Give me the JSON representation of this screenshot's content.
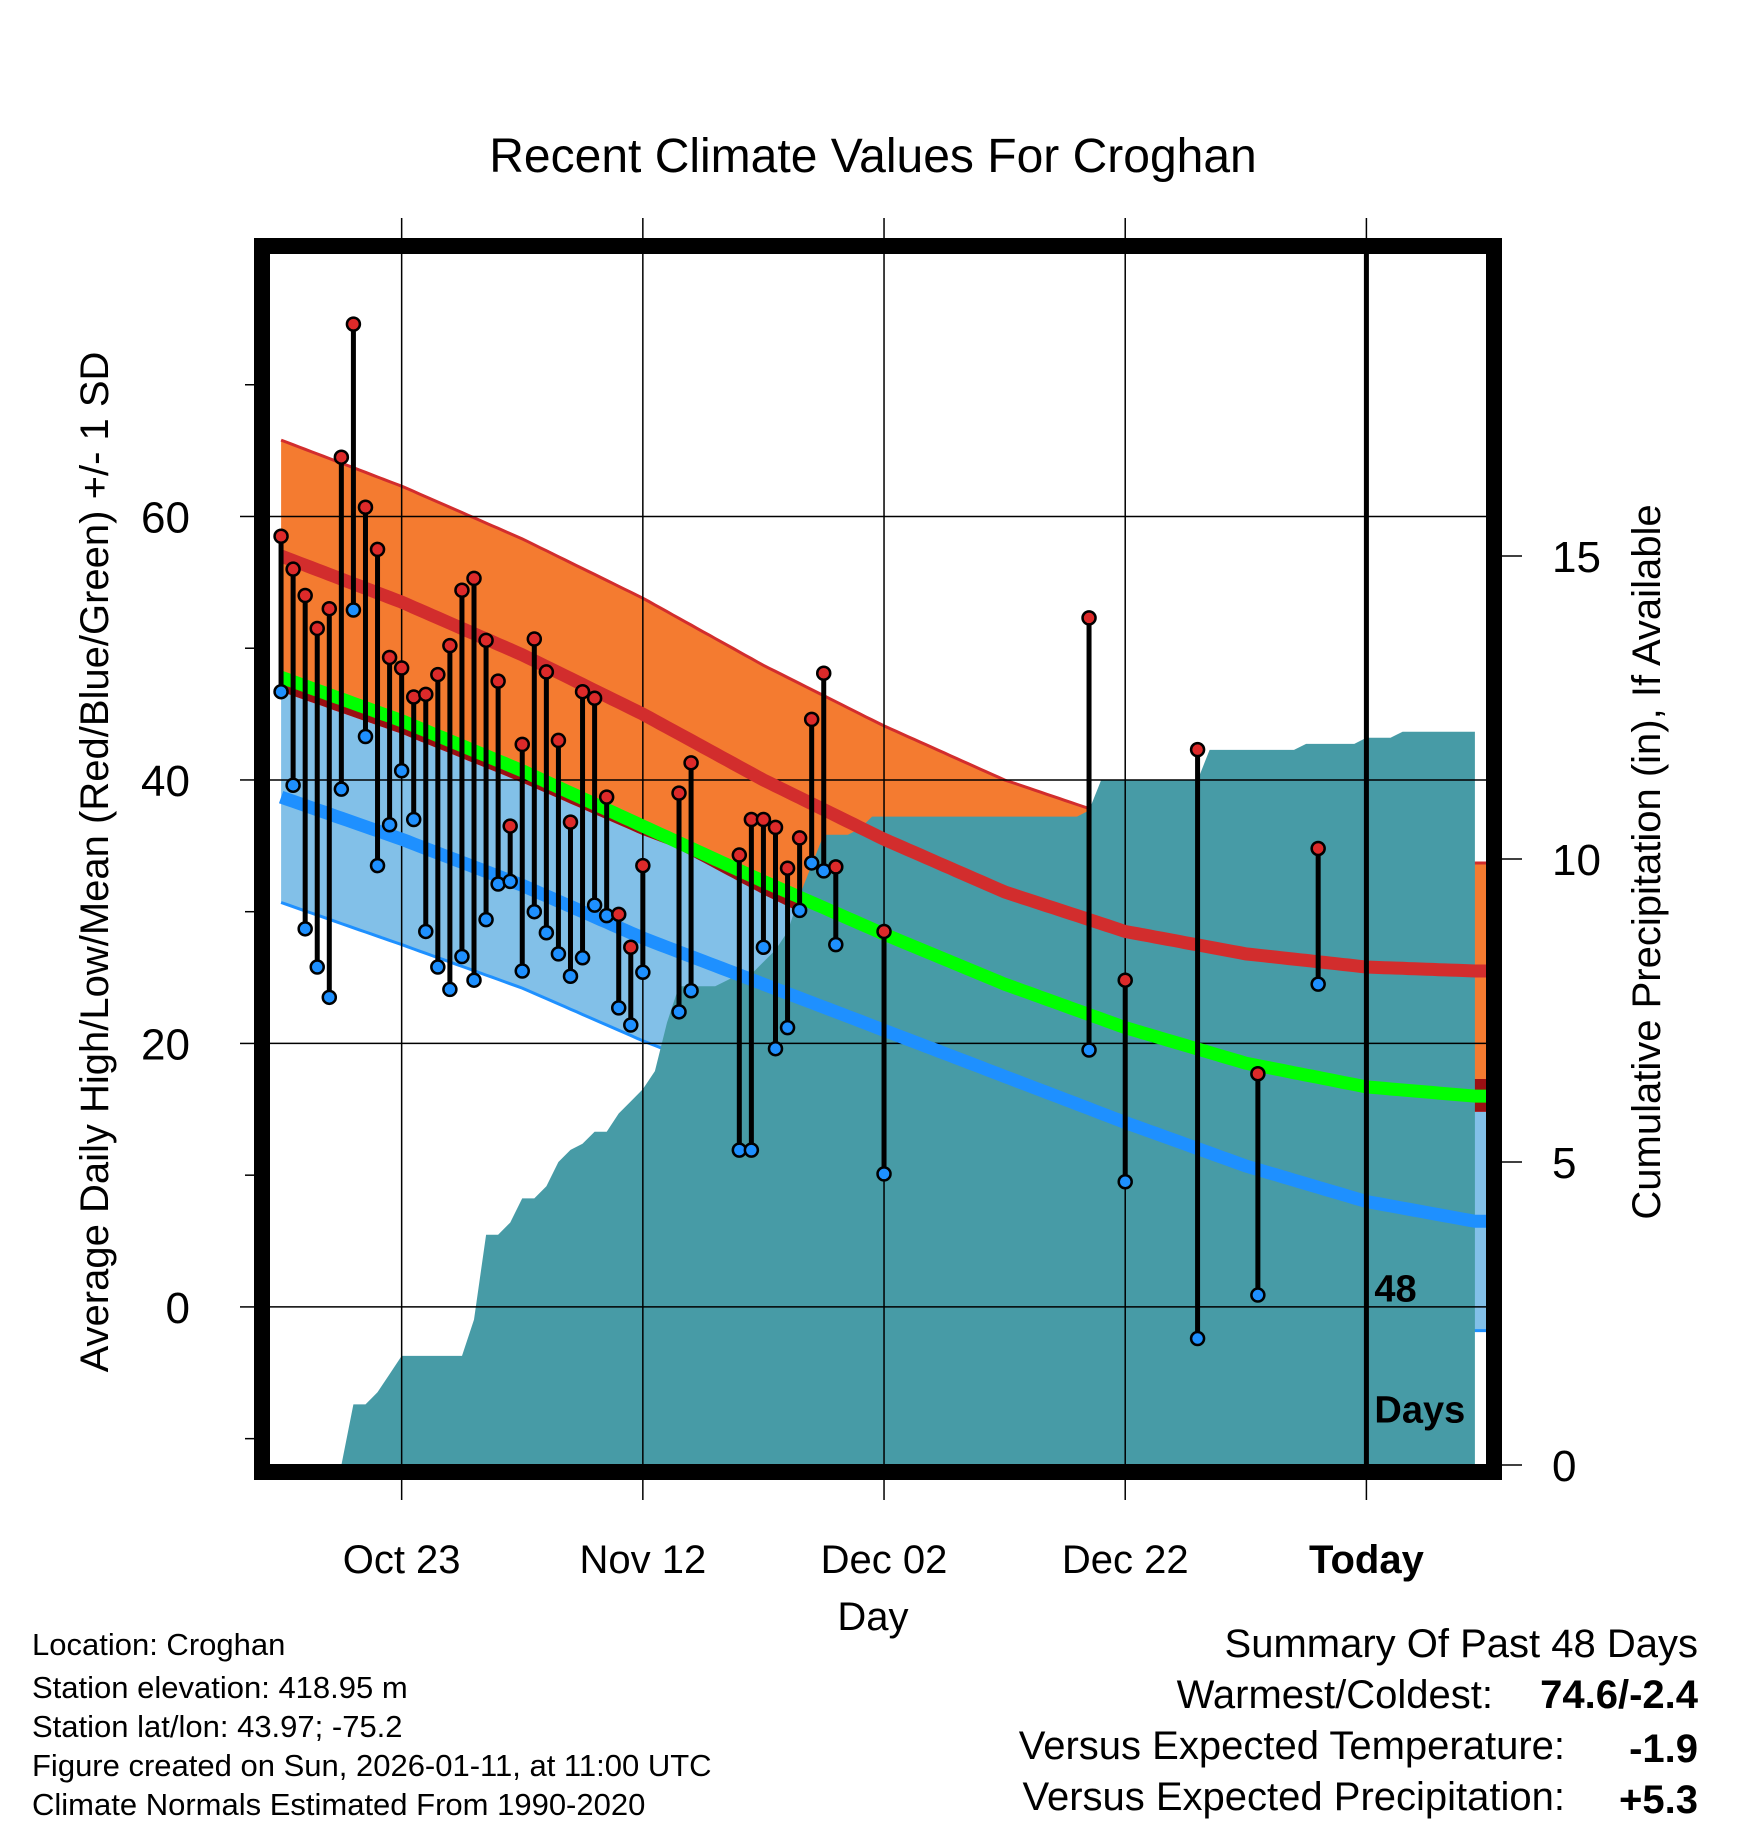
{
  "chart_data": {
    "type": "climate-range",
    "title": "Recent Climate Values For Croghan",
    "xlabel": "Day",
    "ylabel_left": "Average Daily High/Low/Mean (Red/Blue/Green) +/- 1 SD",
    "ylabel_right": "Cumulative Precipitation (in), If Available",
    "xlim": [
      -1,
      100
    ],
    "ylim_left": [
      -12,
      80
    ],
    "ylim_right": [
      0,
      20
    ],
    "yticks_left": [
      0,
      20,
      40,
      60
    ],
    "yticks_right": [
      0,
      5,
      10,
      15
    ],
    "x_ticks": [
      {
        "day": 10,
        "label": "Oct 23"
      },
      {
        "day": 30,
        "label": "Nov 12"
      },
      {
        "day": 50,
        "label": "Dec 02"
      },
      {
        "day": 70,
        "label": "Dec 22"
      },
      {
        "day": 90,
        "label": "Today"
      }
    ],
    "today_day": 90,
    "days_label": [
      "48",
      "Days"
    ],
    "normals": {
      "days": [
        0,
        10,
        20,
        30,
        40,
        50,
        60,
        70,
        80,
        90,
        99
      ],
      "high_mean": [
        57,
        53.5,
        49.5,
        45,
        40,
        35.5,
        31.5,
        28.5,
        26.8,
        25.8,
        25.5
      ],
      "high_sd": [
        8.8,
        8.8,
        8.8,
        8.8,
        8.7,
        8.6,
        8.5,
        8.4,
        8.3,
        8.2,
        8.2
      ],
      "low_mean": [
        38.7,
        35.5,
        32,
        28,
        24.5,
        21,
        17.5,
        14,
        10.7,
        8,
        6.5
      ],
      "low_sd": [
        8,
        8,
        7.8,
        7.8,
        7.9,
        8.3,
        8.6,
        8.6,
        8.6,
        8.4,
        8.3
      ],
      "mean": [
        47.8,
        44.5,
        40.7,
        36.5,
        32.3,
        28.3,
        24.5,
        21.2,
        18.5,
        16.7,
        16
      ]
    },
    "observations": {
      "days": [
        0,
        1,
        2,
        3,
        4,
        5,
        6,
        7,
        8,
        9,
        10,
        11,
        12,
        13,
        14,
        15,
        16,
        17,
        18,
        19,
        20,
        21,
        22,
        23,
        24,
        25,
        26,
        27,
        28,
        29,
        30,
        33,
        34,
        38,
        39,
        40,
        41,
        42,
        43,
        44,
        45,
        46,
        50,
        67,
        70,
        76,
        81,
        86
      ],
      "high": [
        58.5,
        56,
        54,
        51.5,
        53,
        64.5,
        74.6,
        60.7,
        57.5,
        49.3,
        48.5,
        46.3,
        46.5,
        48,
        50.2,
        54.4,
        55.3,
        50.6,
        47.5,
        36.5,
        42.7,
        50.7,
        48.2,
        43,
        36.8,
        46.7,
        46.2,
        38.7,
        29.8,
        27.3,
        33.5,
        39,
        41.3,
        34.3,
        37,
        37,
        36.4,
        33.3,
        35.6,
        44.6,
        48.1,
        33.4,
        28.5,
        52.3,
        24.8,
        42.3,
        17.7,
        34.8
      ],
      "low": [
        46.7,
        39.6,
        28.7,
        25.8,
        23.5,
        39.3,
        52.9,
        43.3,
        33.5,
        36.6,
        40.7,
        37,
        28.5,
        25.8,
        24.1,
        26.6,
        24.8,
        29.4,
        32.1,
        32.3,
        25.5,
        30,
        28.4,
        26.8,
        25.1,
        26.5,
        30.5,
        29.7,
        22.7,
        21.4,
        25.4,
        22.4,
        24,
        11.9,
        11.9,
        27.3,
        19.6,
        21.2,
        30.1,
        33.7,
        33.1,
        27.5,
        10.1,
        19.5,
        9.5,
        -2.4,
        0.9,
        24.5
      ]
    },
    "precipitation": {
      "days": [
        5,
        6,
        7,
        8,
        9,
        10,
        11,
        12,
        13,
        14,
        15,
        16,
        17,
        18,
        19,
        20,
        21,
        22,
        23,
        24,
        25,
        26,
        27,
        28,
        29,
        30,
        31,
        32,
        33,
        34,
        35,
        36,
        37,
        38,
        39,
        40,
        41,
        42,
        43,
        44,
        45,
        46,
        47,
        48,
        49,
        50,
        51,
        52,
        53,
        54,
        55,
        56,
        57,
        58,
        59,
        60,
        61,
        62,
        63,
        64,
        65,
        66,
        67,
        68,
        69,
        70,
        71,
        72,
        73,
        74,
        75,
        76,
        77,
        78,
        79,
        80,
        81,
        82,
        83,
        84,
        85,
        86,
        87,
        88,
        89,
        90,
        91,
        92,
        93,
        94,
        95,
        96,
        97,
        98,
        99
      ],
      "cumulative": [
        0,
        1,
        1,
        1.2,
        1.5,
        1.8,
        1.8,
        1.8,
        1.8,
        1.8,
        1.8,
        2.4,
        3.8,
        3.8,
        4.0,
        4.4,
        4.4,
        4.6,
        5.0,
        5.2,
        5.3,
        5.5,
        5.5,
        5.8,
        6.0,
        6.2,
        6.5,
        7.3,
        7.9,
        7.9,
        7.9,
        7.9,
        8.0,
        8.1,
        8.1,
        8.3,
        8.5,
        8.8,
        9.4,
        9.9,
        10.4,
        10.4,
        10.4,
        10.5,
        10.7,
        10.7,
        10.7,
        10.7,
        10.7,
        10.7,
        10.7,
        10.7,
        10.7,
        10.7,
        10.7,
        10.7,
        10.7,
        10.7,
        10.7,
        10.7,
        10.7,
        10.7,
        10.8,
        11.3,
        11.3,
        11.3,
        11.3,
        11.3,
        11.3,
        11.3,
        11.3,
        11.3,
        11.8,
        11.8,
        11.8,
        11.8,
        11.8,
        11.8,
        11.8,
        11.8,
        11.9,
        11.9,
        11.9,
        11.9,
        11.9,
        12.0,
        12.0,
        12.0,
        12.1,
        12.1,
        12.1,
        12.1,
        12.1,
        12.1,
        12.1
      ]
    }
  },
  "info": {
    "location": "Location: Croghan",
    "elevation": "Station elevation: 418.95 m",
    "latlon": "Station lat/lon: 43.97; -75.2",
    "created": "Figure created on Sun, 2026-01-11, at 11:00 UTC",
    "normals": "Climate Normals Estimated From 1990-2020"
  },
  "summary": {
    "title": "Summary Of Past 48 Days",
    "warm_cold_label": "Warmest/Coldest:",
    "warm_cold_value": "74.6/-2.4",
    "temp_label": "Versus Expected Temperature:",
    "temp_value": "-1.9",
    "temp_color": "#1e90ff",
    "precip_label": "Versus Expected Precipitation:",
    "precip_value": "+5.3",
    "precip_color": "#00dd00"
  },
  "colors": {
    "high_band": "#f47b30",
    "high_line": "#d22d2d",
    "low_band": "#82c0e8",
    "low_line": "#1e90ff",
    "overlap": "#9b0f13",
    "mean_line": "#00ff00",
    "precip": "#479ba6"
  }
}
